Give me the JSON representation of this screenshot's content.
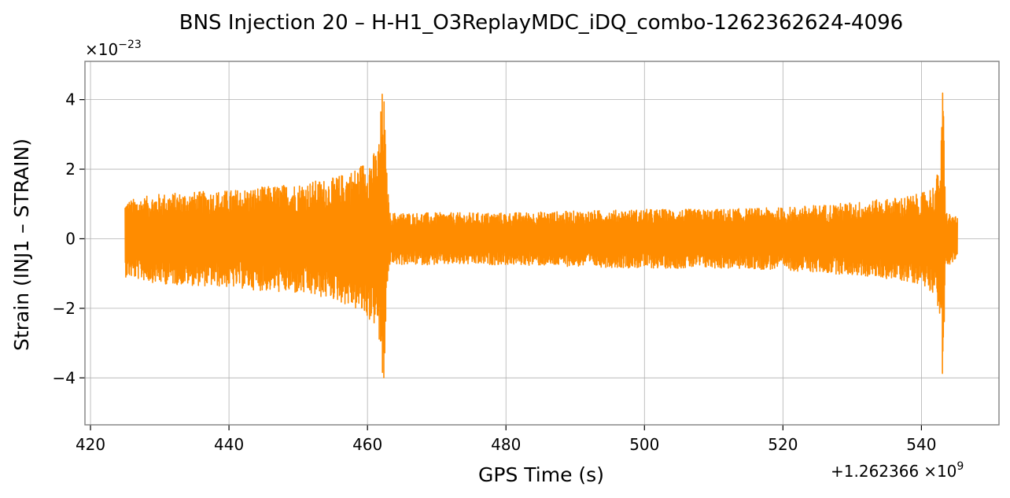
{
  "chart_data": {
    "type": "line",
    "title": "BNS Injection 20 – H-H1_O3ReplayMDC_iDQ_combo-1262362624-4096",
    "xlabel": "GPS Time (s)",
    "ylabel": "Strain (INJ1 – STRAIN)",
    "x_offset_text": "+1.262366",
    "x_offset_exp_base": "×10",
    "x_offset_exp": "9",
    "y_scale_text_base": "×10",
    "y_scale_exp": "−23",
    "xlim": [
      419.2,
      551.2
    ],
    "ylim": [
      -5.35,
      5.1
    ],
    "x_ticks": [
      420,
      440,
      460,
      480,
      500,
      520,
      540
    ],
    "x_tick_labels": [
      "420",
      "440",
      "460",
      "480",
      "500",
      "520",
      "540"
    ],
    "y_ticks": [
      -4,
      -2,
      0,
      2,
      4
    ],
    "y_tick_labels": [
      "−4",
      "−2",
      "0",
      "2",
      "4"
    ],
    "grid": true,
    "series": [
      {
        "color": "#ff8c00",
        "x_range": [
          425.0,
          545.2
        ],
        "envelope_x": [
          425.0,
          430.0,
          435.0,
          440.0,
          445.0,
          450.0,
          455.0,
          458.0,
          460.0,
          461.5,
          462.3,
          462.7,
          463.2,
          470.0,
          480.0,
          490.0,
          500.0,
          510.0,
          520.0,
          530.0,
          535.0,
          540.0,
          542.0,
          542.8,
          543.1,
          543.5,
          545.2
        ],
        "envelope_amplitude": [
          1.1,
          1.3,
          1.35,
          1.4,
          1.5,
          1.6,
          1.75,
          2.0,
          2.3,
          2.6,
          4.7,
          2.2,
          0.75,
          0.75,
          0.75,
          0.8,
          0.85,
          0.85,
          0.9,
          1.05,
          1.15,
          1.3,
          1.6,
          2.4,
          4.7,
          0.8,
          0.6
        ]
      }
    ]
  }
}
